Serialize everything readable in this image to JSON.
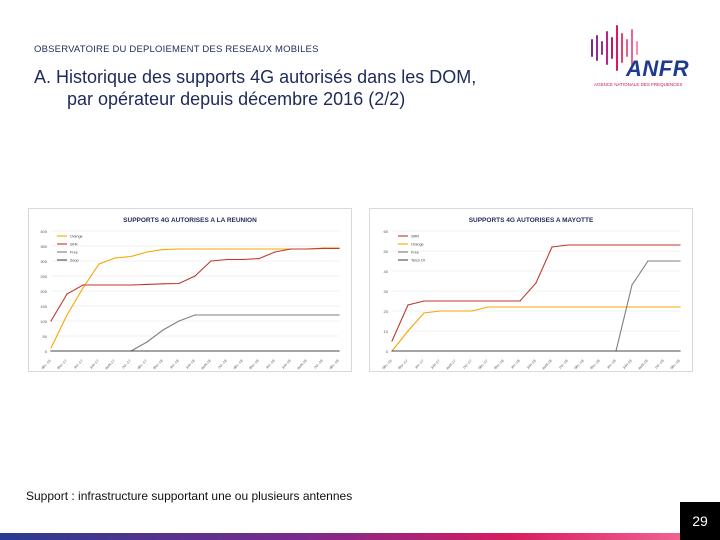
{
  "header": {
    "observatory": "OBSERVATOIRE DU DEPLOIEMENT DES RESEAUX MOBILES",
    "title_line1": "A. Historique des supports 4G autorisés dans les DOM,",
    "title_line2": "par opérateur depuis décembre 2016 (2/2)"
  },
  "logo": {
    "name": "ANFR",
    "subtitle": "AGENCE NATIONALE DES FREQUENCES",
    "colors": [
      "#1f3b8f",
      "#c2185b",
      "#7b2a8c"
    ]
  },
  "footnote": "Support : infrastructure supportant une ou plusieurs antennes",
  "page_number": "29",
  "chart_data": [
    {
      "type": "line",
      "title": "SUPPORTS 4G AUTORISES A LA REUNION",
      "x": [
        "déc.-16",
        "févr.-17",
        "avr.-17",
        "juin-17",
        "août-17",
        "oct.-17",
        "déc.-17",
        "févr.-18",
        "avr.-18",
        "juin-18",
        "août-18",
        "oct.-18",
        "déc.-18",
        "févr.-19",
        "avr.-19",
        "juin-19",
        "août-19",
        "oct.-19",
        "déc.-19"
      ],
      "xticks": [
        "déc.-16",
        "févr.-17",
        "avr.-17",
        "juin-17",
        "août-17",
        "oct.-17",
        "déc.-17",
        "févr.-18",
        "avr.-18",
        "juin-18",
        "août-18",
        "oct.-18",
        "déc.-18",
        "févr.-19",
        "avr.-19",
        "juin-19",
        "août-19",
        "oct.-19",
        "déc.-19"
      ],
      "ylim": [
        0,
        400
      ],
      "yticks": [
        0,
        50,
        100,
        150,
        200,
        250,
        300,
        350,
        400
      ],
      "yticklabels": [
        "0",
        "50",
        "100",
        "150",
        "200",
        "250",
        "300",
        "350",
        "400"
      ],
      "legend_position": "top-left",
      "grid": true,
      "series": [
        {
          "name": "Orange",
          "color": "#f7a600",
          "values": [
            10,
            120,
            210,
            290,
            310,
            315,
            330,
            338,
            340,
            340,
            340,
            340,
            340,
            340,
            340,
            340,
            340,
            343,
            343
          ]
        },
        {
          "name": "SFR",
          "color": "#c0392b",
          "values": [
            100,
            190,
            220,
            220,
            220,
            220,
            222,
            224,
            225,
            250,
            300,
            305,
            305,
            308,
            330,
            340,
            340,
            342,
            342
          ]
        },
        {
          "name": "Free",
          "color": "#7f7f7f",
          "values": [
            null,
            null,
            null,
            null,
            null,
            0,
            30,
            70,
            100,
            120,
            120,
            120,
            120,
            120,
            120,
            120,
            120,
            120,
            120
          ]
        },
        {
          "name": "Zeop",
          "color": "#4a4a4a",
          "values": [
            0,
            0,
            0,
            0,
            0,
            0,
            0,
            0,
            0,
            0,
            0,
            0,
            0,
            0,
            0,
            0,
            0,
            0,
            0
          ]
        }
      ]
    },
    {
      "type": "line",
      "title": "SUPPORTS 4G AUTORISES A MAYOTTE",
      "x": [
        "déc.-16",
        "févr.-17",
        "avr.-17",
        "juin-17",
        "août-17",
        "oct.-17",
        "déc.-17",
        "févr.-18",
        "avr.-18",
        "juin-18",
        "août-18",
        "oct.-18",
        "déc.-18",
        "févr.-19",
        "avr.-19",
        "juin-19",
        "août-19",
        "oct.-19",
        "déc.-19"
      ],
      "xticks": [
        "déc.-16",
        "févr.-17",
        "avr.-17",
        "juin-17",
        "août-17",
        "oct.-17",
        "déc.-17",
        "févr.-18",
        "avr.-18",
        "juin-18",
        "août-18",
        "oct.-18",
        "déc.-18",
        "févr.-19",
        "avr.-19",
        "juin-19",
        "août-19",
        "oct.-19",
        "déc.-19"
      ],
      "ylim": [
        0,
        60
      ],
      "yticks": [
        0,
        10,
        20,
        30,
        40,
        50,
        60
      ],
      "yticklabels": [
        "0",
        "10",
        "20",
        "30",
        "40",
        "50",
        "60"
      ],
      "legend_position": "top-left",
      "grid": true,
      "series": [
        {
          "name": "SRR",
          "color": "#c0392b",
          "values": [
            5,
            23,
            25,
            25,
            25,
            25,
            25,
            25,
            25,
            34,
            52,
            53,
            53,
            53,
            53,
            53,
            53,
            53,
            53
          ]
        },
        {
          "name": "Orange",
          "color": "#f7a600",
          "values": [
            0,
            10,
            19,
            20,
            20,
            20,
            22,
            22,
            22,
            22,
            22,
            22,
            22,
            22,
            22,
            22,
            22,
            22,
            22
          ]
        },
        {
          "name": "Free",
          "color": "#7f7f7f",
          "values": [
            null,
            null,
            null,
            null,
            null,
            null,
            null,
            null,
            null,
            null,
            null,
            null,
            null,
            null,
            0,
            33,
            45,
            45,
            45
          ]
        },
        {
          "name": "Telco OI",
          "color": "#4a4a4a",
          "values": [
            0,
            0,
            0,
            0,
            0,
            0,
            0,
            0,
            0,
            0,
            0,
            0,
            0,
            0,
            0,
            0,
            0,
            0,
            0
          ]
        }
      ]
    }
  ]
}
